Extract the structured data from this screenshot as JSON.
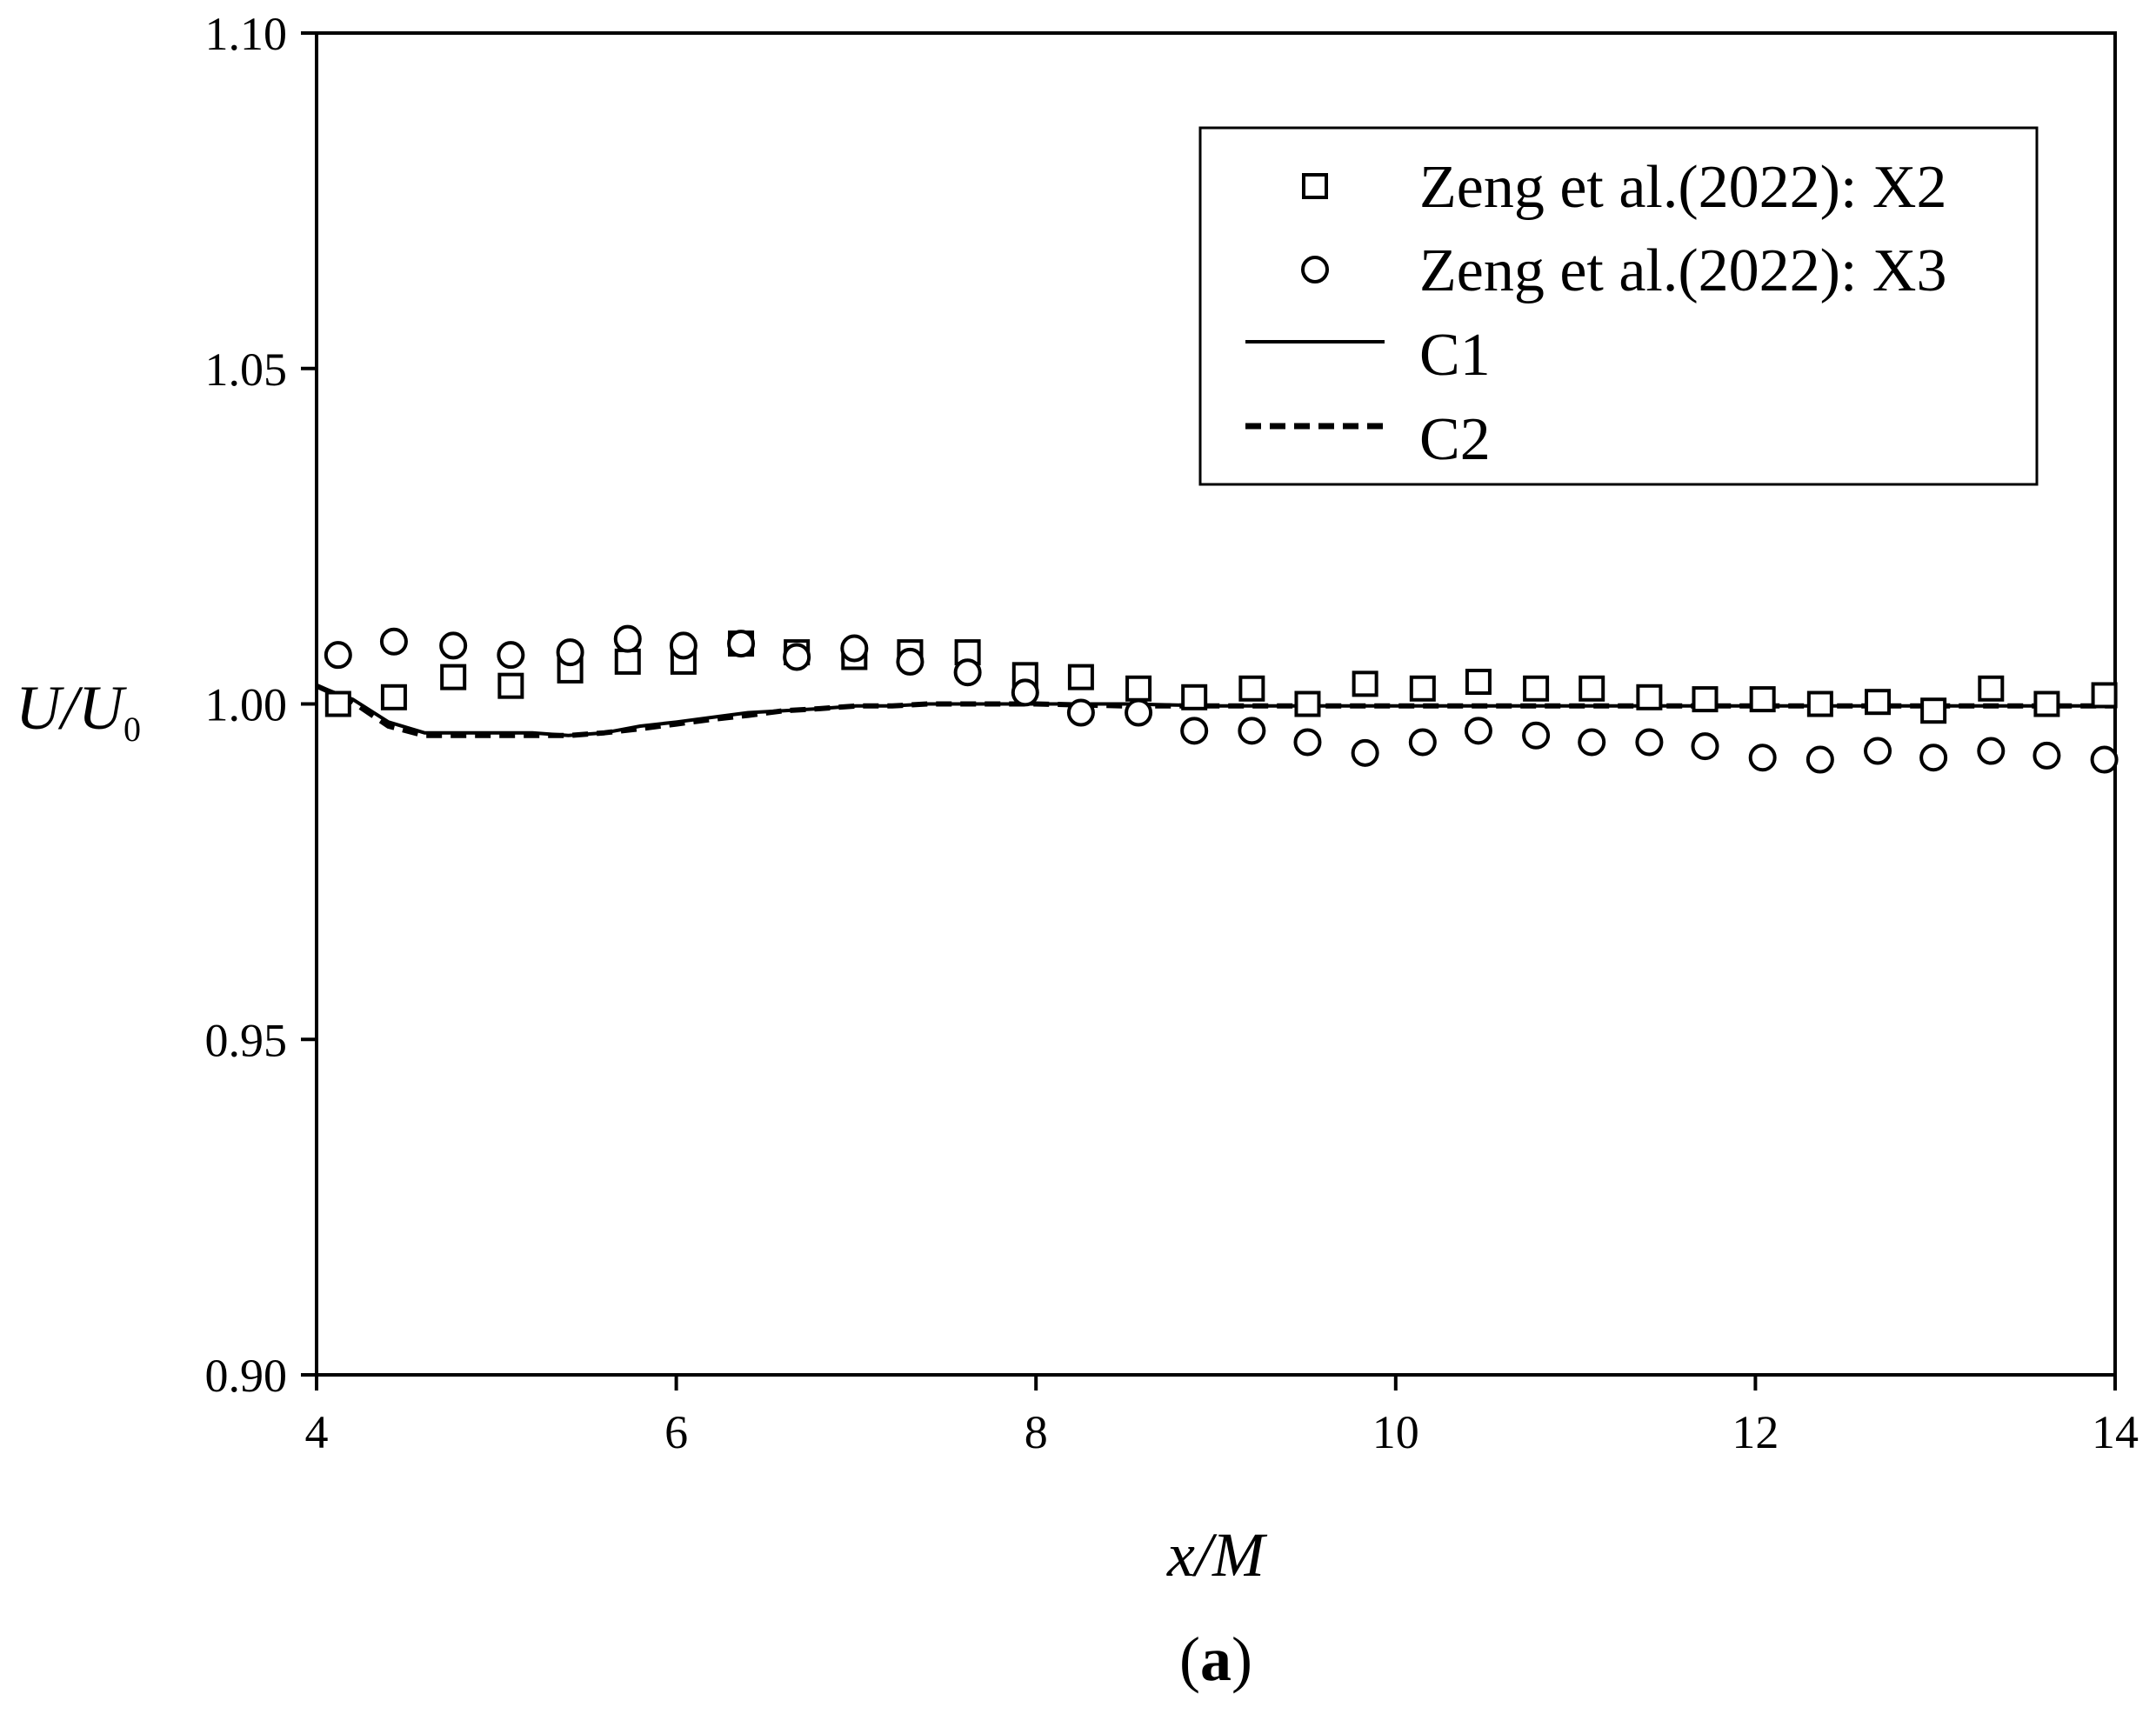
{
  "chart_data": {
    "type": "scatter",
    "xlabel": "x/M",
    "ylabel": "U/U0",
    "ylabel_parts": {
      "main": "U/U",
      "sub": "0"
    },
    "panel_label": "a",
    "xlim": [
      4,
      14
    ],
    "ylim": [
      0.9,
      1.1
    ],
    "x_ticks": [
      "4",
      "6",
      "8",
      "10",
      "12",
      "14"
    ],
    "y_ticks": [
      "0.90",
      "0.95",
      "1.00",
      "1.05",
      "1.10"
    ],
    "grid": false,
    "legend_position": "top-right",
    "series": [
      {
        "name": "Zeng et al.(2022): X2",
        "kind": "markers",
        "marker": "square",
        "x": [
          4.12,
          4.43,
          4.76,
          5.08,
          5.41,
          5.73,
          6.04,
          6.36,
          6.67,
          6.99,
          7.3,
          7.62,
          7.94,
          8.25,
          8.57,
          8.88,
          9.2,
          9.51,
          9.83,
          10.15,
          10.46,
          10.78,
          11.09,
          11.41,
          11.72,
          12.04,
          12.36,
          12.68,
          12.99,
          13.31,
          13.62,
          13.94
        ],
        "y": [
          1.0,
          1.001,
          1.004,
          1.0027,
          1.005,
          1.0063,
          1.0063,
          1.009,
          1.0077,
          1.007,
          1.0077,
          1.0077,
          1.0043,
          1.004,
          1.0023,
          1.001,
          1.0023,
          1.0,
          1.003,
          1.0023,
          1.0033,
          1.0023,
          1.0023,
          1.001,
          1.0007,
          1.0007,
          1.0,
          1.0003,
          0.999,
          1.0023,
          1.0,
          1.0013
        ]
      },
      {
        "name": "Zeng et al.(2022): X3",
        "kind": "markers",
        "marker": "circle",
        "x": [
          4.12,
          4.43,
          4.76,
          5.08,
          5.41,
          5.73,
          6.04,
          6.36,
          6.67,
          6.99,
          7.3,
          7.62,
          7.94,
          8.25,
          8.57,
          8.88,
          9.2,
          9.51,
          9.83,
          10.15,
          10.46,
          10.78,
          11.09,
          11.41,
          11.72,
          12.04,
          12.36,
          12.68,
          12.99,
          13.31,
          13.62,
          13.94
        ],
        "y": [
          1.0073,
          1.0093,
          1.0087,
          1.0073,
          1.0077,
          1.0097,
          1.0087,
          1.009,
          1.007,
          1.0083,
          1.0063,
          1.0047,
          1.0017,
          0.9987,
          0.9987,
          0.996,
          0.996,
          0.9943,
          0.9927,
          0.9943,
          0.996,
          0.9953,
          0.9943,
          0.9943,
          0.9937,
          0.992,
          0.9917,
          0.993,
          0.992,
          0.993,
          0.9923,
          0.9917
        ]
      },
      {
        "name": "C1",
        "kind": "line",
        "style": "solid",
        "x": [
          4.0,
          4.2,
          4.4,
          4.6,
          4.8,
          5.0,
          5.2,
          5.4,
          5.6,
          5.8,
          6.0,
          6.2,
          6.4,
          6.6,
          6.8,
          7.0,
          7.2,
          7.4,
          7.6,
          7.8,
          8.0,
          8.5,
          9.0,
          9.5,
          10.0,
          10.5,
          11.0,
          11.5,
          12.0,
          12.5,
          13.0,
          13.5,
          14.0
        ],
        "y": [
          1.0027,
          1.0007,
          0.9973,
          0.9957,
          0.9957,
          0.9957,
          0.9957,
          0.9953,
          0.9957,
          0.9967,
          0.9973,
          0.998,
          0.9987,
          0.999,
          0.9993,
          0.9997,
          0.9997,
          1.0,
          1.0,
          1.0,
          1.0,
          1.0,
          0.9997,
          0.9997,
          0.9997,
          0.9997,
          0.9997,
          0.9997,
          0.9997,
          0.9997,
          0.9997,
          0.9997,
          0.9997
        ]
      },
      {
        "name": "C2",
        "kind": "line",
        "style": "dashed",
        "x": [
          4.0,
          4.2,
          4.4,
          4.6,
          4.8,
          5.0,
          5.2,
          5.4,
          5.6,
          5.8,
          6.0,
          6.2,
          6.4,
          6.6,
          6.8,
          7.0,
          7.2,
          7.4,
          7.6,
          7.8,
          8.0,
          8.5,
          9.0,
          9.5,
          10.0,
          10.5,
          11.0,
          11.5,
          12.0,
          12.5,
          13.0,
          13.5,
          14.0
        ],
        "y": [
          1.0027,
          1.0003,
          0.9967,
          0.9953,
          0.9953,
          0.9953,
          0.9953,
          0.9953,
          0.9957,
          0.9963,
          0.997,
          0.9977,
          0.9983,
          0.999,
          0.9993,
          0.9997,
          0.9997,
          1.0,
          1.0,
          1.0,
          1.0,
          0.9997,
          0.9997,
          0.9997,
          0.9997,
          0.9997,
          0.9997,
          0.9997,
          0.9997,
          0.9997,
          0.9997,
          0.9997,
          0.9997
        ]
      }
    ]
  }
}
